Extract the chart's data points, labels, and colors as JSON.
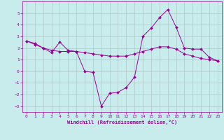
{
  "title": "",
  "xlabel": "Windchill (Refroidissement éolien,°C)",
  "ylabel": "",
  "bg_color": "#c8ecec",
  "line_color": "#990099",
  "grid_color": "#b0c8c8",
  "hours": [
    0,
    1,
    2,
    3,
    4,
    5,
    6,
    7,
    8,
    9,
    10,
    11,
    12,
    13,
    14,
    15,
    16,
    17,
    18,
    19,
    20,
    21,
    22,
    23
  ],
  "line1": [
    2.6,
    2.4,
    2.0,
    1.6,
    2.5,
    1.8,
    1.7,
    0.0,
    -0.1,
    -3.0,
    -1.9,
    -1.8,
    -1.4,
    -0.5,
    3.0,
    3.7,
    4.6,
    5.3,
    3.8,
    2.0,
    1.9,
    1.9,
    1.2,
    0.9
  ],
  "line2": [
    2.6,
    2.3,
    2.0,
    1.8,
    1.7,
    1.7,
    1.7,
    1.6,
    1.5,
    1.4,
    1.3,
    1.3,
    1.3,
    1.5,
    1.7,
    1.9,
    2.1,
    2.1,
    1.9,
    1.5,
    1.3,
    1.1,
    1.0,
    0.9
  ],
  "ylim": [
    -3.5,
    6.0
  ],
  "yticks": [
    -3,
    -2,
    -1,
    0,
    1,
    2,
    3,
    4,
    5
  ],
  "xlim": [
    -0.5,
    23.5
  ],
  "xticks": [
    0,
    1,
    2,
    3,
    4,
    5,
    6,
    7,
    8,
    9,
    10,
    11,
    12,
    13,
    14,
    15,
    16,
    17,
    18,
    19,
    20,
    21,
    22,
    23
  ]
}
